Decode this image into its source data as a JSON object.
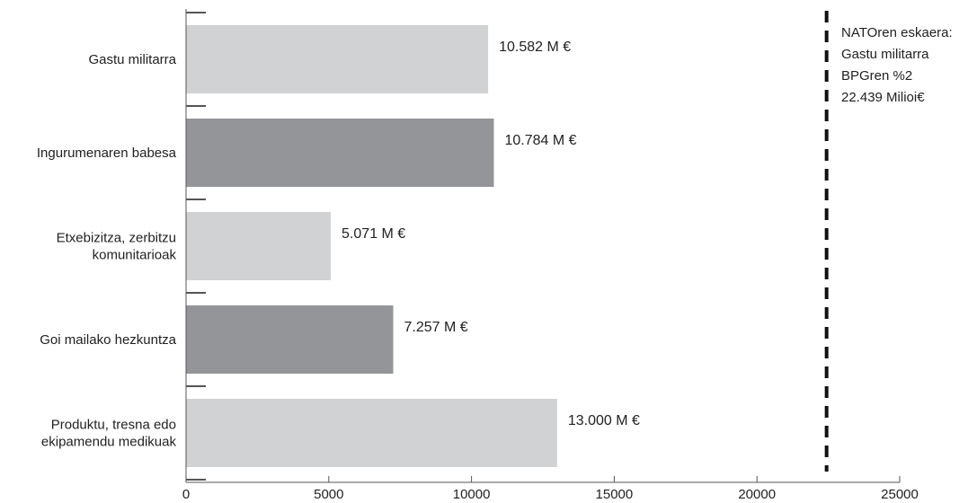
{
  "chart_data": {
    "type": "bar",
    "orientation": "horizontal",
    "categories": [
      [
        "Gastu militarra"
      ],
      [
        "Ingurumenaren babesa"
      ],
      [
        "Etxebizitza, zerbitzu",
        "komunitarioak"
      ],
      [
        "Goi mailako hezkuntza"
      ],
      [
        "Produktu, tresna edo",
        "ekipamendu medikuak"
      ]
    ],
    "values": [
      10582,
      10784,
      5071,
      7257,
      13000
    ],
    "value_labels": [
      "10.582 M €",
      "10.784 M €",
      "5.071 M €",
      "7.257 M €",
      "13.000 M €"
    ],
    "bar_colors": [
      "#d1d2d4",
      "#939598",
      "#d1d2d4",
      "#939598",
      "#d1d2d4"
    ],
    "xlim": [
      0,
      25000
    ],
    "xticks": [
      0,
      5000,
      10000,
      15000,
      20000,
      25000
    ],
    "xtick_labels": [
      "0",
      "5000",
      "10000",
      "15000",
      "20000",
      "25000"
    ],
    "reference_line": {
      "value": 22439,
      "style": "dashed",
      "color": "#111111",
      "label_lines": [
        "NATOren eskaera:",
        "Gastu militarra",
        "BPGren %2",
        "22.439 Milioi€"
      ]
    },
    "grid": false
  }
}
